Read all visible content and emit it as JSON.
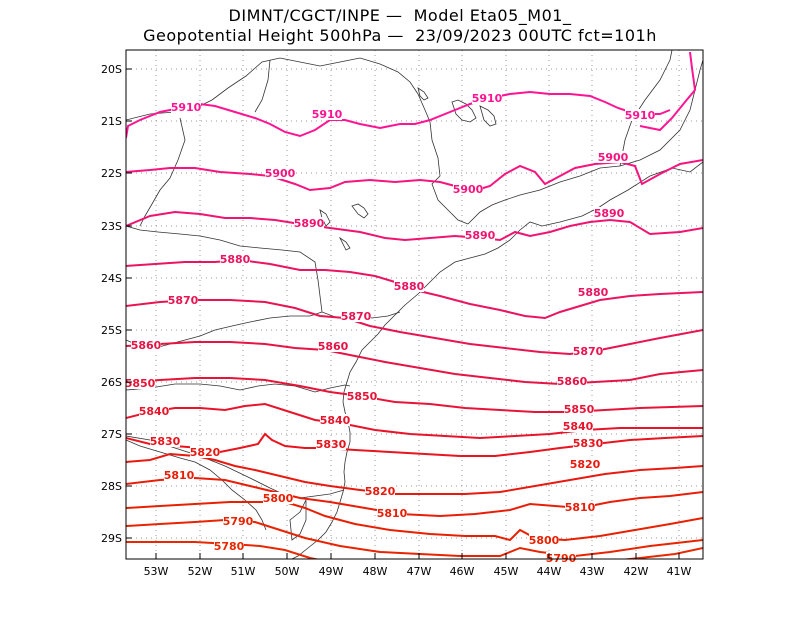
{
  "title_line1": "DIMNT/CGCT/INPE —  Model Eta05_M01_",
  "title_line2": "Geopotential Height 500hPa —  23/09/2023 00UTC fct=101h",
  "lon_labels": [
    "53W",
    "52W",
    "51W",
    "50W",
    "49W",
    "48W",
    "47W",
    "46W",
    "45W",
    "44W",
    "43W",
    "42W",
    "41W"
  ],
  "lat_labels": [
    "20S",
    "21S",
    "22S",
    "23S",
    "24S",
    "25S",
    "26S",
    "27S",
    "28S",
    "29S"
  ],
  "contour_labels": [
    {
      "text": "5910",
      "value": 5910
    },
    {
      "text": "5910",
      "value": 5910
    },
    {
      "text": "5910",
      "value": 5910
    },
    {
      "text": "5910",
      "value": 5910
    },
    {
      "text": "5900",
      "value": 5900
    },
    {
      "text": "5900",
      "value": 5900
    },
    {
      "text": "5900",
      "value": 5900
    },
    {
      "text": "5890",
      "value": 5890
    },
    {
      "text": "5890",
      "value": 5890
    },
    {
      "text": "5890",
      "value": 5890
    },
    {
      "text": "5880",
      "value": 5880
    },
    {
      "text": "5880",
      "value": 5880
    },
    {
      "text": "5880",
      "value": 5880
    },
    {
      "text": "5870",
      "value": 5870
    },
    {
      "text": "5870",
      "value": 5870
    },
    {
      "text": "5870",
      "value": 5870
    },
    {
      "text": "5860",
      "value": 5860
    },
    {
      "text": "5860",
      "value": 5860
    },
    {
      "text": "5860",
      "value": 5860
    },
    {
      "text": "5850",
      "value": 5850
    },
    {
      "text": "5850",
      "value": 5850
    },
    {
      "text": "5850",
      "value": 5850
    },
    {
      "text": "5840",
      "value": 5840
    },
    {
      "text": "5840",
      "value": 5840
    },
    {
      "text": "5840",
      "value": 5840
    },
    {
      "text": "5830",
      "value": 5830
    },
    {
      "text": "5830",
      "value": 5830
    },
    {
      "text": "5830",
      "value": 5830
    },
    {
      "text": "5820",
      "value": 5820
    },
    {
      "text": "5820",
      "value": 5820
    },
    {
      "text": "5820",
      "value": 5820
    },
    {
      "text": "5810",
      "value": 5810
    },
    {
      "text": "5810",
      "value": 5810
    },
    {
      "text": "5810",
      "value": 5810
    },
    {
      "text": "5800",
      "value": 5800
    },
    {
      "text": "5800",
      "value": 5800
    },
    {
      "text": "5790",
      "value": 5790
    },
    {
      "text": "5790",
      "value": 5790
    },
    {
      "text": "5780",
      "value": 5780
    }
  ],
  "level_colors": {
    "5910": "#ff1493",
    "5900": "#f7147f",
    "5890": "#f01470",
    "5880": "#ea1460",
    "5870": "#e81452",
    "5860": "#e61445",
    "5850": "#e81438",
    "5840": "#e8142b",
    "5830": "#e8141e",
    "5820": "#e81a10",
    "5810": "#e81e08",
    "5800": "#e82000",
    "5790": "#e82400",
    "5780": "#e82800"
  }
}
